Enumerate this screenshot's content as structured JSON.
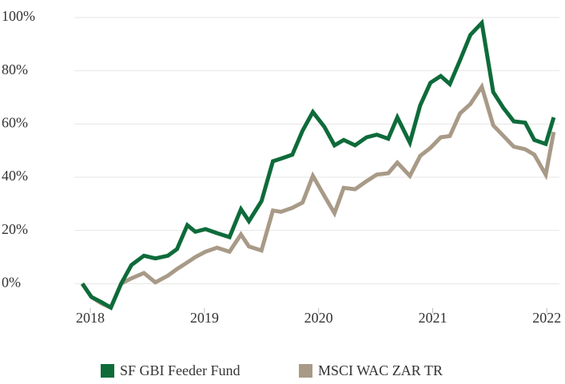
{
  "chart_data": {
    "type": "line",
    "x": [
      2017.93,
      2018.01,
      2018.1,
      2018.18,
      2018.27,
      2018.36,
      2018.47,
      2018.57,
      2018.68,
      2018.76,
      2018.85,
      2018.92,
      2019.01,
      2019.11,
      2019.22,
      2019.32,
      2019.39,
      2019.5,
      2019.6,
      2019.67,
      2019.77,
      2019.86,
      2019.95,
      2020.05,
      2020.14,
      2020.22,
      2020.32,
      2020.42,
      2020.51,
      2020.61,
      2020.69,
      2020.8,
      2020.89,
      2020.98,
      2021.07,
      2021.15,
      2021.24,
      2021.33,
      2021.43,
      2021.53,
      2021.62,
      2021.71,
      2021.81,
      2021.89,
      2021.99,
      2022.06
    ],
    "series": [
      {
        "name": "SF GBI Feeder Fund",
        "color": "#0e6b3a",
        "values": [
          0,
          -5,
          -7,
          -9,
          0,
          7,
          10.5,
          9.5,
          10.5,
          13,
          22,
          19.5,
          20.5,
          19,
          17.5,
          28,
          23.5,
          31,
          46,
          47,
          48.5,
          57.5,
          64.5,
          59,
          52,
          54,
          52,
          55,
          56,
          54.5,
          62.5,
          53,
          67,
          75.5,
          78,
          75,
          84,
          93.5,
          98,
          72,
          66,
          61,
          60.5,
          54,
          52.5,
          62.5
        ]
      },
      {
        "name": "MSCI WAC ZAR TR",
        "color": "#a89a87",
        "values": [
          0,
          -5,
          -7.5,
          -9,
          0,
          2,
          4,
          0.5,
          3,
          5.5,
          8,
          10,
          12,
          13.5,
          12,
          18.5,
          14,
          12.5,
          27.5,
          27,
          28.5,
          30.5,
          40.5,
          33,
          26.5,
          36,
          35.5,
          38.5,
          41,
          41.5,
          45.5,
          40.5,
          48,
          51,
          55,
          55.5,
          64,
          67.5,
          74,
          59.5,
          55.5,
          51.5,
          50.5,
          48.5,
          41,
          57
        ]
      }
    ],
    "xlim": [
      2017.86,
      2022.11
    ],
    "xticks": [
      2018,
      2019,
      2020,
      2021,
      2022
    ],
    "ylim": [
      -11,
      100
    ],
    "yticks": [
      {
        "value": 0,
        "label": "0%"
      },
      {
        "value": 20,
        "label": "20%"
      },
      {
        "value": 40,
        "label": "40%"
      },
      {
        "value": 60,
        "label": "60%"
      },
      {
        "value": 80,
        "label": "80%"
      },
      {
        "value": 100,
        "label": "100%"
      }
    ],
    "grid": true
  }
}
